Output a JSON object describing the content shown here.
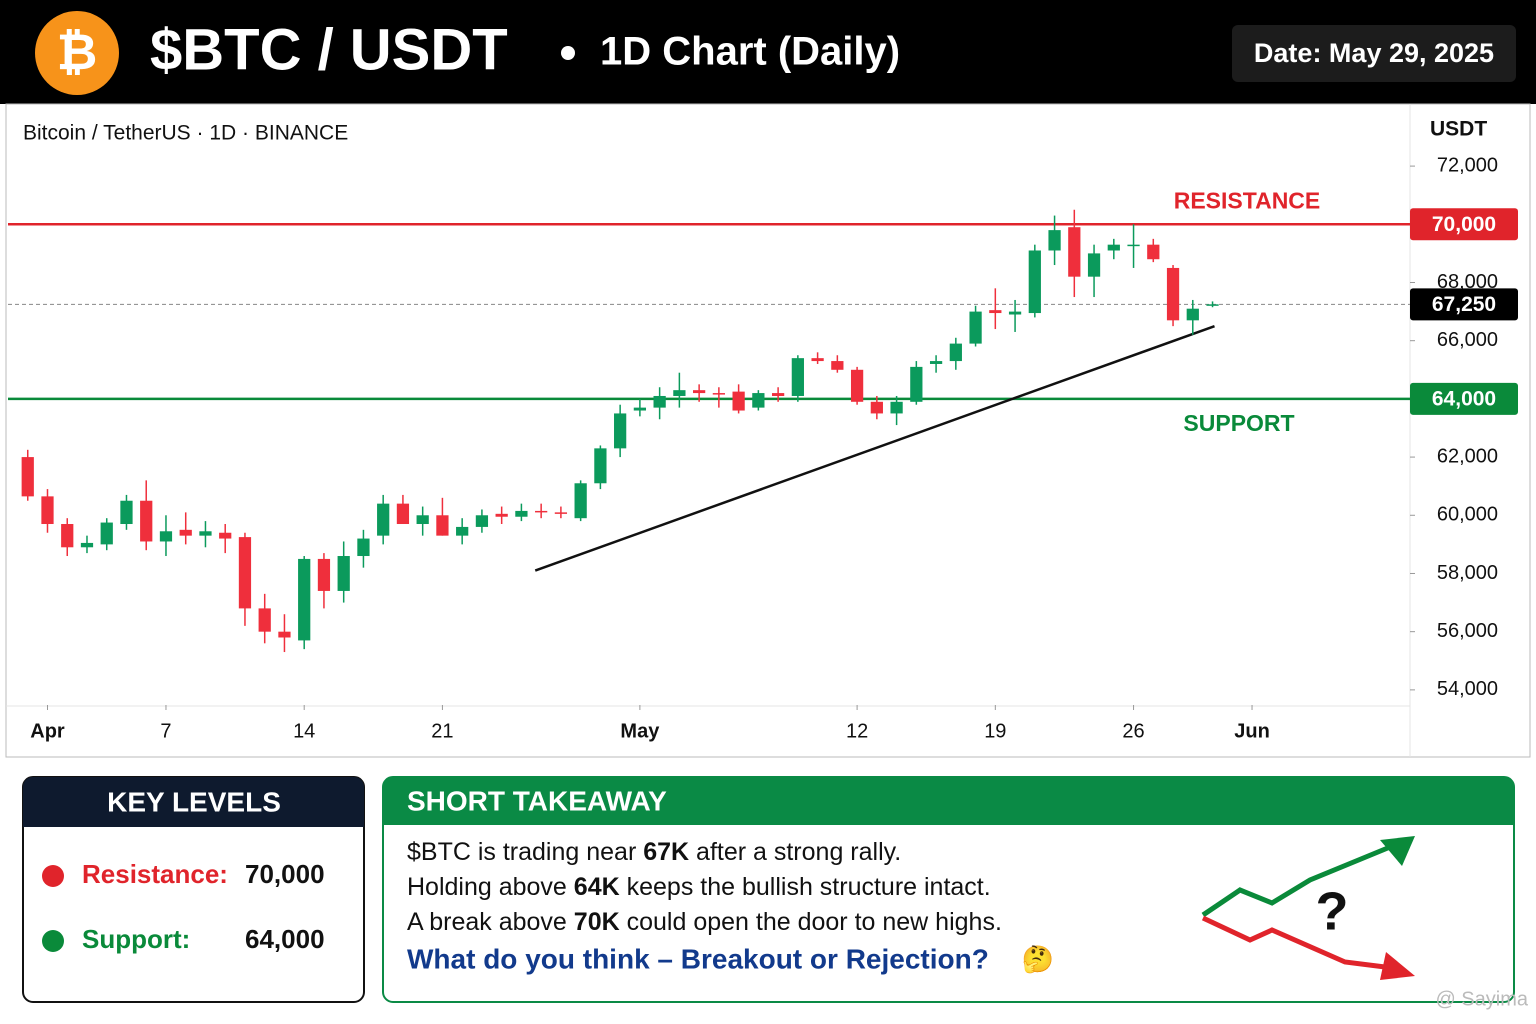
{
  "header": {
    "logo": "₿",
    "title": "$BTC / USDT",
    "subtitle": "1D Chart (Daily)",
    "date": "Date: May 29, 2025"
  },
  "chart_data": {
    "type": "candlestick",
    "subtitle": "Bitcoin / TetherUS · 1D · BINANCE",
    "y_label": "USDT",
    "up_color": "#0b9a5c",
    "down_color": "#ef2f3c",
    "x": [
      -1,
      0,
      1,
      2,
      3,
      4,
      5,
      6,
      7,
      8,
      9,
      10,
      11,
      12,
      13,
      14,
      15,
      16,
      17,
      18,
      19,
      20,
      21,
      22,
      23,
      24,
      25,
      26,
      27,
      28,
      29,
      30,
      31,
      32,
      33,
      34,
      35,
      36,
      37,
      38,
      39,
      40,
      41,
      42,
      43,
      44,
      45,
      46,
      47,
      48,
      49,
      50,
      51,
      52,
      53,
      54,
      55,
      56,
      57,
      58,
      59
    ],
    "open": [
      62000,
      60650,
      59700,
      58900,
      59000,
      59700,
      60500,
      59100,
      59500,
      59300,
      59400,
      59250,
      56800,
      56000,
      55700,
      58500,
      57400,
      58600,
      59300,
      60400,
      59700,
      60000,
      59300,
      59600,
      60050,
      59950,
      60150,
      60100,
      59900,
      61100,
      62300,
      63600,
      63700,
      64100,
      64300,
      64200,
      64250,
      63700,
      64200,
      64100,
      65400,
      65300,
      65000,
      63900,
      63500,
      63900,
      65200,
      65300,
      65900,
      67050,
      66900,
      66950,
      69100,
      69900,
      68200,
      69100,
      69300,
      69300,
      68500,
      66700,
      67250
    ],
    "high": [
      62250,
      60900,
      59900,
      59300,
      59900,
      60700,
      61200,
      60000,
      60100,
      59800,
      59700,
      59400,
      57300,
      56600,
      58600,
      58700,
      59100,
      59500,
      60700,
      60700,
      60300,
      60600,
      59900,
      60200,
      60300,
      60400,
      60400,
      60300,
      61200,
      62400,
      63800,
      64000,
      64400,
      64900,
      64500,
      64400,
      64500,
      64300,
      64400,
      65500,
      65600,
      65500,
      65100,
      64100,
      64100,
      65300,
      65500,
      66100,
      67200,
      67800,
      67400,
      69300,
      70300,
      70500,
      69300,
      69500,
      70000,
      69500,
      68600,
      67400,
      67350
    ],
    "low": [
      60500,
      59400,
      58600,
      58700,
      58800,
      59500,
      58800,
      58600,
      59000,
      58900,
      58700,
      56200,
      55600,
      55300,
      55400,
      56800,
      57000,
      58200,
      59000,
      59700,
      59300,
      59300,
      59000,
      59400,
      59700,
      59800,
      59900,
      59900,
      59800,
      60900,
      62000,
      63400,
      63300,
      63700,
      63900,
      63700,
      63500,
      63600,
      63900,
      63900,
      65200,
      64900,
      63800,
      63300,
      63100,
      63800,
      64900,
      65000,
      65800,
      66400,
      66300,
      66800,
      68600,
      67500,
      67500,
      68800,
      68500,
      68700,
      66500,
      66200,
      67150
    ],
    "close": [
      60650,
      59700,
      58900,
      59050,
      59750,
      60500,
      59100,
      59450,
      59300,
      59450,
      59200,
      56800,
      56000,
      55800,
      58500,
      57400,
      58600,
      59200,
      60400,
      59700,
      60000,
      59300,
      59600,
      60000,
      59950,
      60150,
      60100,
      60050,
      61100,
      62300,
      63500,
      63700,
      64100,
      64300,
      64200,
      64150,
      63600,
      64200,
      64100,
      65400,
      65300,
      65000,
      63900,
      63500,
      63900,
      65100,
      65300,
      65900,
      67000,
      66950,
      67000,
      69100,
      69800,
      68200,
      69000,
      69300,
      69300,
      68800,
      66700,
      67100,
      67250
    ],
    "xlim": [
      -2,
      69
    ],
    "xticks": [
      {
        "value": 0,
        "label": "Apr"
      },
      {
        "value": 6,
        "label": "7"
      },
      {
        "value": 13,
        "label": "14"
      },
      {
        "value": 20,
        "label": "21"
      },
      {
        "value": 30,
        "label": "May"
      },
      {
        "value": 41,
        "label": "12"
      },
      {
        "value": 48,
        "label": "19"
      },
      {
        "value": 55,
        "label": "26"
      },
      {
        "value": 61,
        "label": "Jun"
      }
    ],
    "ylim": [
      53480,
      74100
    ],
    "yticks": [
      {
        "value": 54000,
        "label": "54,000"
      },
      {
        "value": 56000,
        "label": "56,000"
      },
      {
        "value": 58000,
        "label": "58,000"
      },
      {
        "value": 60000,
        "label": "60,000"
      },
      {
        "value": 62000,
        "label": "62,000"
      },
      {
        "value": 66000,
        "label": "66,000"
      },
      {
        "value": 68000,
        "label": "68,000"
      },
      {
        "value": 72000,
        "label": "72,000"
      }
    ],
    "grid": false,
    "levels": [
      {
        "name": "RESISTANCE",
        "value": 70000,
        "label": "70,000",
        "color": "#e0242b"
      },
      {
        "name": "SUPPORT",
        "value": 64000,
        "label": "64,000",
        "color": "#0a8a3a"
      }
    ],
    "last_price": {
      "value": 67250,
      "label": "67,250"
    },
    "trendline": {
      "x": [
        24.7,
        59.1
      ],
      "y": [
        58100,
        66500
      ]
    }
  },
  "key_levels": {
    "title": "KEY LEVELS",
    "items": [
      {
        "label": "Resistance:",
        "value": "70,000",
        "color": "#e0242b"
      },
      {
        "label": "Support:",
        "value": "64,000",
        "color": "#0a8a3a"
      }
    ]
  },
  "takeaway": {
    "title": "SHORT TAKEAWAY",
    "lines": [
      [
        "$BTC is trading near ",
        "67K",
        " after a strong rally."
      ],
      [
        "Holding above ",
        "64K",
        " keeps the bullish structure intact."
      ],
      [
        "A break above ",
        "70K",
        " could open the door to new highs."
      ]
    ],
    "question": "What do you think – Breakout or Rejection?",
    "emoji": "🤔"
  },
  "watermark": "@ Sayima"
}
